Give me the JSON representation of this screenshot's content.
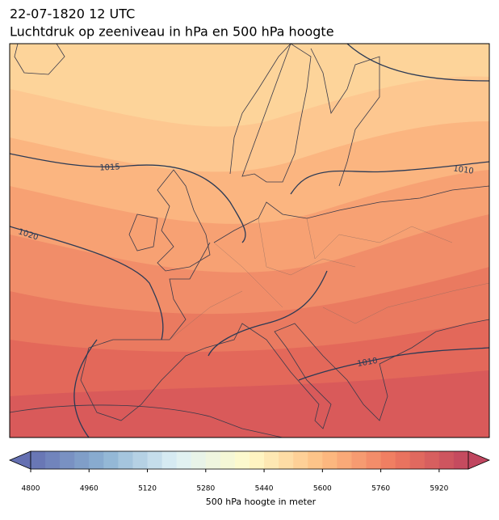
{
  "header": {
    "title": "22-07-1820 12 UTC",
    "subtitle": "Luchtdruk op zeeniveau in hPa en 500 hPa hoogte"
  },
  "contour_labels": [
    1015,
    1010,
    1020,
    1010
  ],
  "colorbar": {
    "label": "500 hPa hoogte in meter",
    "lim": [
      4800,
      6000
    ],
    "ticks": [
      4800,
      4960,
      5120,
      5280,
      5440,
      5600,
      5760,
      5920
    ]
  }
}
